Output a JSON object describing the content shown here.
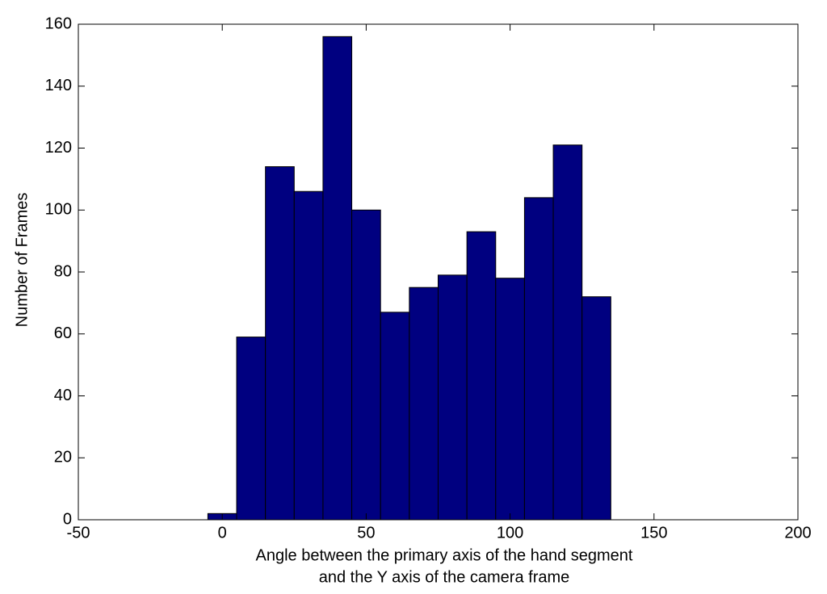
{
  "chart_data": {
    "type": "histogram",
    "xlabel": [
      "Angle between the primary axis of the hand segment",
      "and the Y axis of the camera frame"
    ],
    "ylabel": "Number of Frames",
    "bins": [
      -5,
      5,
      15,
      25,
      35,
      45,
      55,
      65,
      75,
      85,
      95,
      105,
      115,
      125,
      135
    ],
    "values": [
      2,
      59,
      114,
      106,
      156,
      100,
      67,
      75,
      79,
      93,
      78,
      104,
      121,
      72
    ],
    "color": "#000080",
    "xlim": [
      -50,
      200
    ],
    "xticks": [
      -50,
      0,
      50,
      100,
      150,
      200
    ],
    "ylim": [
      0,
      160
    ],
    "yticks": [
      0,
      20,
      40,
      60,
      80,
      100,
      120,
      140,
      160
    ],
    "grid": false
  }
}
